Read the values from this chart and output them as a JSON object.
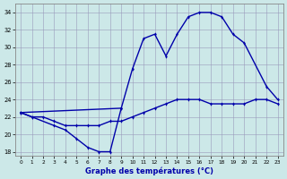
{
  "xlabel": "Graphe des températures (°C)",
  "background_color": "#cce8e8",
  "grid_color": "#9999bb",
  "line_color": "#0000aa",
  "ylim": [
    17.5,
    35.0
  ],
  "xlim": [
    -0.5,
    23.5
  ],
  "yticks": [
    18,
    20,
    22,
    24,
    26,
    28,
    30,
    32,
    34
  ],
  "xticks": [
    0,
    1,
    2,
    3,
    4,
    5,
    6,
    7,
    8,
    9,
    10,
    11,
    12,
    13,
    14,
    15,
    16,
    17,
    18,
    19,
    20,
    21,
    22,
    23
  ],
  "line_max": {
    "x": [
      0,
      9,
      10,
      11,
      12,
      13,
      14,
      15,
      16,
      17,
      18,
      19,
      20,
      22,
      23
    ],
    "y": [
      22.5,
      23.0,
      27.5,
      31.0,
      31.5,
      29.0,
      31.5,
      33.5,
      34.0,
      34.0,
      33.5,
      31.5,
      30.5,
      25.5,
      24.0
    ]
  },
  "line_min": {
    "x": [
      0,
      1,
      3,
      4,
      5,
      6,
      7,
      8,
      9
    ],
    "y": [
      22.5,
      22.0,
      21.0,
      20.5,
      19.5,
      18.5,
      18.0,
      18.0,
      23.0
    ]
  },
  "line_mean": {
    "x": [
      0,
      1,
      2,
      3,
      4,
      5,
      6,
      7,
      8,
      9,
      10,
      11,
      12,
      13,
      14,
      15,
      16,
      17,
      18,
      19,
      20,
      21,
      22,
      23
    ],
    "y": [
      22.5,
      22.0,
      22.0,
      21.5,
      21.0,
      21.0,
      21.0,
      21.0,
      21.5,
      21.5,
      22.0,
      22.5,
      23.0,
      23.5,
      24.0,
      24.0,
      24.0,
      23.5,
      23.5,
      23.5,
      23.5,
      24.0,
      24.0,
      23.5
    ]
  }
}
